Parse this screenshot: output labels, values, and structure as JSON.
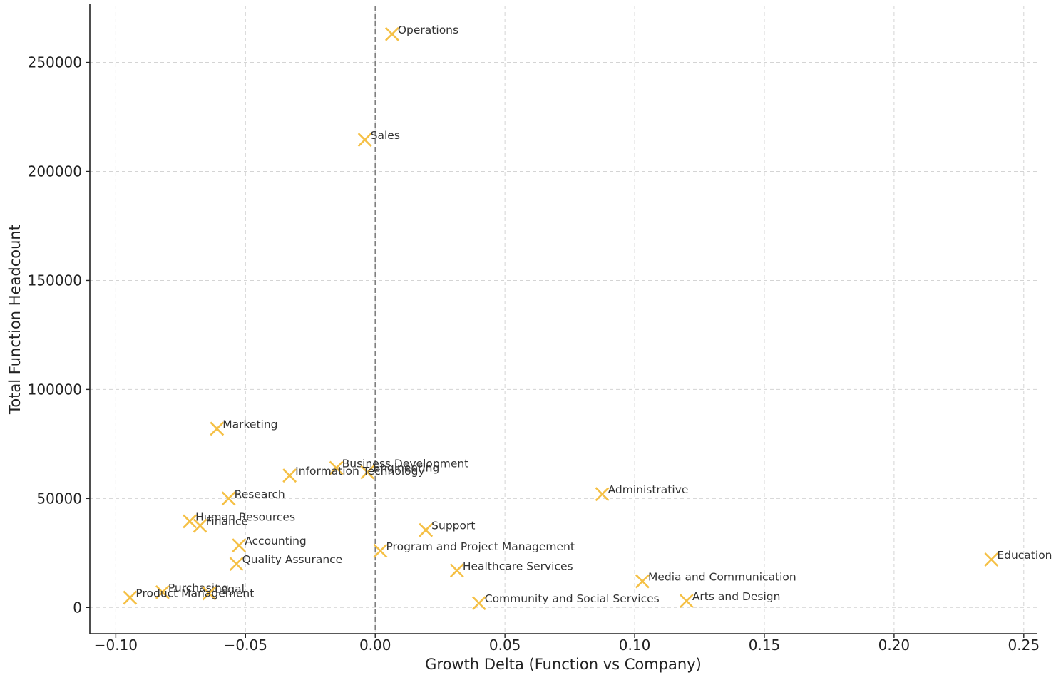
{
  "chart_data": {
    "type": "scatter",
    "title": "",
    "xlabel": "Growth Delta (Function vs Company)",
    "ylabel": "Total Function Headcount",
    "xlim": [
      -0.11,
      0.255
    ],
    "ylim": [
      -12000,
      276000
    ],
    "xticks": [
      -0.1,
      -0.05,
      0.0,
      0.05,
      0.1,
      0.15,
      0.2,
      0.25
    ],
    "xtick_labels": [
      "−0.10",
      "−0.05",
      "0.00",
      "0.05",
      "0.10",
      "0.15",
      "0.20",
      "0.25"
    ],
    "yticks": [
      0,
      50000,
      100000,
      150000,
      200000,
      250000
    ],
    "ytick_labels": [
      "0",
      "50000",
      "100000",
      "150000",
      "200000",
      "250000"
    ],
    "grid": true,
    "reference_line_x": 0,
    "marker": "x",
    "marker_color": "#f5c045",
    "points": [
      {
        "label": "Operations",
        "x": 0.0065,
        "y": 263000
      },
      {
        "label": "Sales",
        "x": -0.004,
        "y": 214500
      },
      {
        "label": "Marketing",
        "x": -0.061,
        "y": 82000
      },
      {
        "label": "Business Development",
        "x": -0.015,
        "y": 64000
      },
      {
        "label": "Engineering",
        "x": -0.003,
        "y": 62000
      },
      {
        "label": "Information Technology",
        "x": -0.033,
        "y": 60500
      },
      {
        "label": "Administrative",
        "x": 0.0875,
        "y": 52000
      },
      {
        "label": "Research",
        "x": -0.0565,
        "y": 50000
      },
      {
        "label": "Human Resources",
        "x": -0.0715,
        "y": 39500
      },
      {
        "label": "Finance",
        "x": -0.0675,
        "y": 37500
      },
      {
        "label": "Support",
        "x": 0.0195,
        "y": 35500
      },
      {
        "label": "Accounting",
        "x": -0.0525,
        "y": 28500
      },
      {
        "label": "Program and Project Management",
        "x": 0.002,
        "y": 26000
      },
      {
        "label": "Education",
        "x": 0.2375,
        "y": 22000
      },
      {
        "label": "Quality Assurance",
        "x": -0.0535,
        "y": 20000
      },
      {
        "label": "Healthcare Services",
        "x": 0.0315,
        "y": 17000
      },
      {
        "label": "Media and Communication",
        "x": 0.103,
        "y": 12000
      },
      {
        "label": "Purchasing",
        "x": -0.082,
        "y": 7000
      },
      {
        "label": "Legal",
        "x": -0.064,
        "y": 6500
      },
      {
        "label": "Product Management",
        "x": -0.0945,
        "y": 4500
      },
      {
        "label": "Arts and Design",
        "x": 0.12,
        "y": 3000
      },
      {
        "label": "Community and Social Services",
        "x": 0.04,
        "y": 2000
      }
    ]
  }
}
